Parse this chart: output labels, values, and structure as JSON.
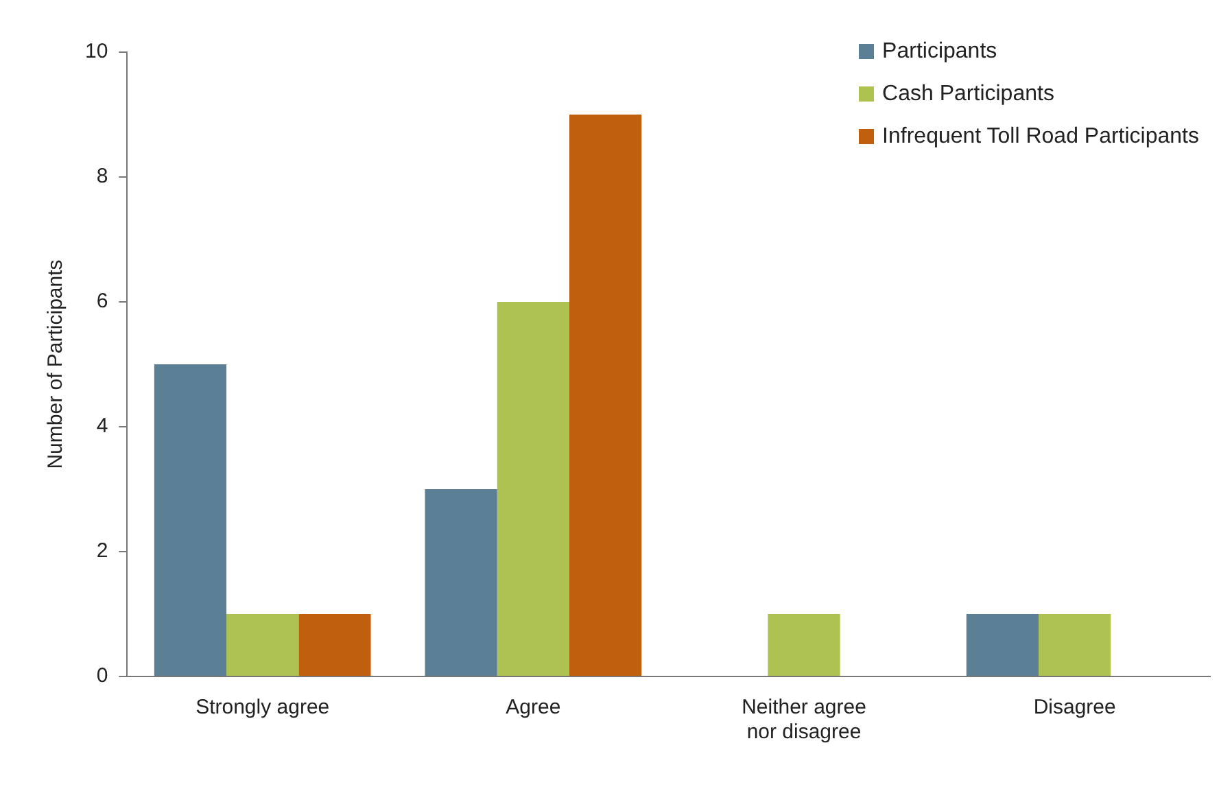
{
  "chart_data": {
    "type": "bar",
    "ylabel": "Number of Participants",
    "categories": [
      "Strongly agree",
      "Agree",
      "Neither agree nor disagree",
      "Disagree"
    ],
    "series": [
      {
        "name": "Participants",
        "color": "#5b7f95",
        "values": [
          5,
          3,
          0,
          1
        ]
      },
      {
        "name": "Cash Participants",
        "color": "#adc251",
        "values": [
          1,
          6,
          1,
          1
        ]
      },
      {
        "name": "Infrequent Toll Road Participants",
        "color": "#c0600f",
        "values": [
          1,
          9,
          0,
          0
        ]
      }
    ],
    "ylim": [
      0,
      10
    ],
    "yticks": [
      0,
      2,
      4,
      6,
      8,
      10
    ],
    "grid": false,
    "legend": "top right"
  }
}
